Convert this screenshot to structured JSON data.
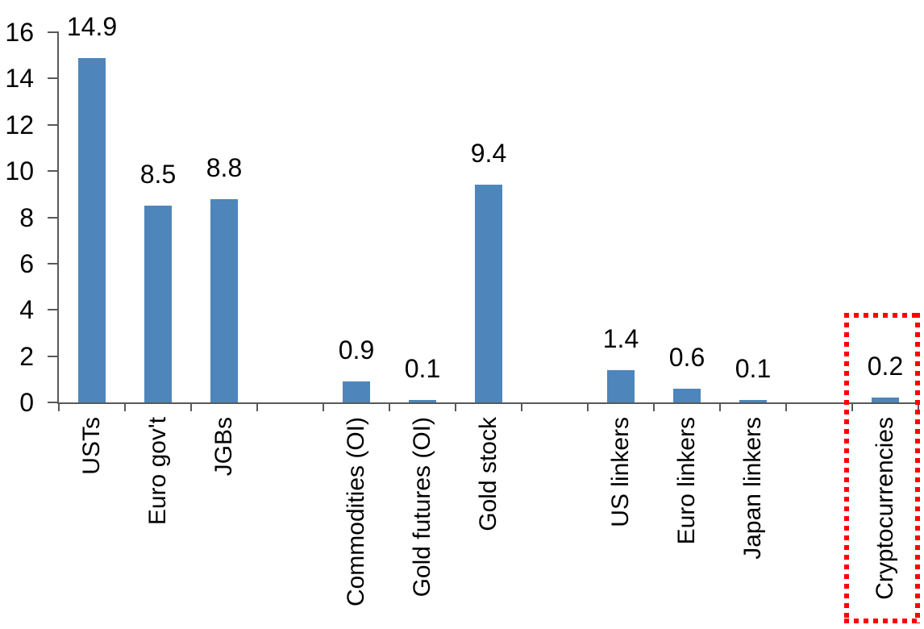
{
  "chart_data": {
    "type": "bar",
    "title": "",
    "xlabel": "",
    "ylabel": "",
    "categories": [
      "USTs",
      "Euro gov't",
      "JGBs",
      "",
      "Commodities (OI)",
      "Gold futures (OI)",
      "Gold stock",
      "",
      "US linkers",
      "Euro linkers",
      "Japan linkers",
      "",
      "Cryptocurrencies"
    ],
    "values": [
      14.9,
      8.5,
      8.8,
      null,
      0.9,
      0.1,
      9.4,
      null,
      1.4,
      0.6,
      0.1,
      null,
      0.2
    ],
    "data_labels": [
      "14.9",
      "8.5",
      "8.8",
      "",
      "0.9",
      "0.1",
      "9.4",
      "",
      "1.4",
      "0.6",
      "0.1",
      "",
      "0.2"
    ],
    "ylim": [
      0,
      16
    ],
    "yticks": [
      0,
      2,
      4,
      6,
      8,
      10,
      12,
      14,
      16
    ],
    "grid": false,
    "legend": false,
    "bar_color": "#4E86BB",
    "axis_color": "#595959",
    "text_color": "#000000",
    "highlight": {
      "category": "Cryptocurrencies",
      "style": "red-dotted-rectangle",
      "color": "#FF0000"
    }
  }
}
